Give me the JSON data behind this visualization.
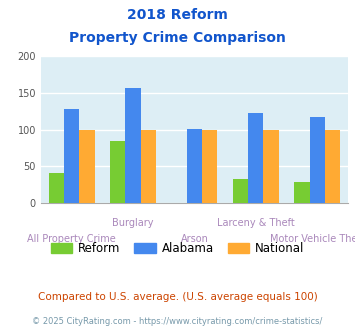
{
  "title_line1": "2018 Reform",
  "title_line2": "Property Crime Comparison",
  "categories": [
    "All Property Crime",
    "Burglary",
    "Arson",
    "Larceny & Theft",
    "Motor Vehicle Theft"
  ],
  "series": {
    "Reform": [
      41,
      85,
      0,
      33,
      28
    ],
    "Alabama": [
      128,
      157,
      101,
      123,
      117
    ],
    "National": [
      100,
      100,
      100,
      100,
      100
    ]
  },
  "colors": {
    "Reform": "#77cc33",
    "Alabama": "#4488ee",
    "National": "#ffaa33"
  },
  "ylim": [
    0,
    200
  ],
  "yticks": [
    0,
    50,
    100,
    150,
    200
  ],
  "plot_bg": "#ddeef5",
  "title_color": "#1155cc",
  "xlabel_color_row1": "#aa88bb",
  "xlabel_color_row2": "#aa88bb",
  "footer_text": "Compared to U.S. average. (U.S. average equals 100)",
  "footer_color": "#cc4400",
  "credit_text": "© 2025 CityRating.com - https://www.cityrating.com/crime-statistics/",
  "credit_color": "#7799aa",
  "bar_width": 0.25
}
